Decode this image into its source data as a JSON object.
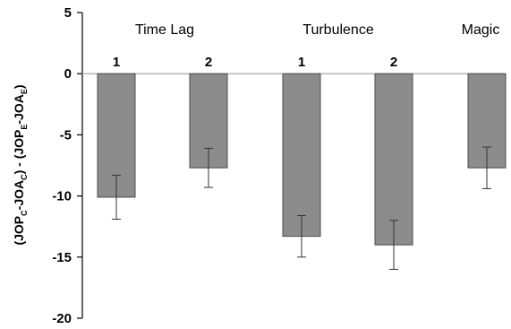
{
  "chart_data": {
    "type": "bar",
    "ylabel": {
      "parts": [
        "(JOP",
        "C",
        "-JOA",
        "C",
        ") - (JOP",
        "E",
        "-JOA",
        "E",
        ")"
      ],
      "subscript_flags": [
        false,
        true,
        false,
        true,
        false,
        true,
        false,
        true,
        false
      ]
    },
    "ylim": [
      -20,
      5
    ],
    "yticks": [
      5,
      0,
      -5,
      -10,
      -15,
      -20
    ],
    "groups": [
      {
        "label": "Time Lag",
        "categories": [
          "1",
          "2"
        ]
      },
      {
        "label": "Turbulence",
        "categories": [
          "1",
          "2"
        ]
      },
      {
        "label": "Magic",
        "categories": [
          ""
        ]
      }
    ],
    "bars": [
      {
        "group": "Time Lag",
        "category": "1",
        "value": -10.1,
        "error_low": -11.9,
        "error_high": -8.3
      },
      {
        "group": "Time Lag",
        "category": "2",
        "value": -7.7,
        "error_low": -9.3,
        "error_high": -6.1
      },
      {
        "group": "Turbulence",
        "category": "1",
        "value": -13.3,
        "error_low": -15.0,
        "error_high": -11.6
      },
      {
        "group": "Turbulence",
        "category": "2",
        "value": -14.0,
        "error_low": -16.0,
        "error_high": -12.0
      },
      {
        "group": "Magic",
        "category": "",
        "value": -7.7,
        "error_low": -9.4,
        "error_high": -6.0
      }
    ],
    "bar_color": "#8c8c8c",
    "bar_edge_color": "#4d4d4d",
    "zero_line_color": "#b5b5b5",
    "grid": false
  }
}
